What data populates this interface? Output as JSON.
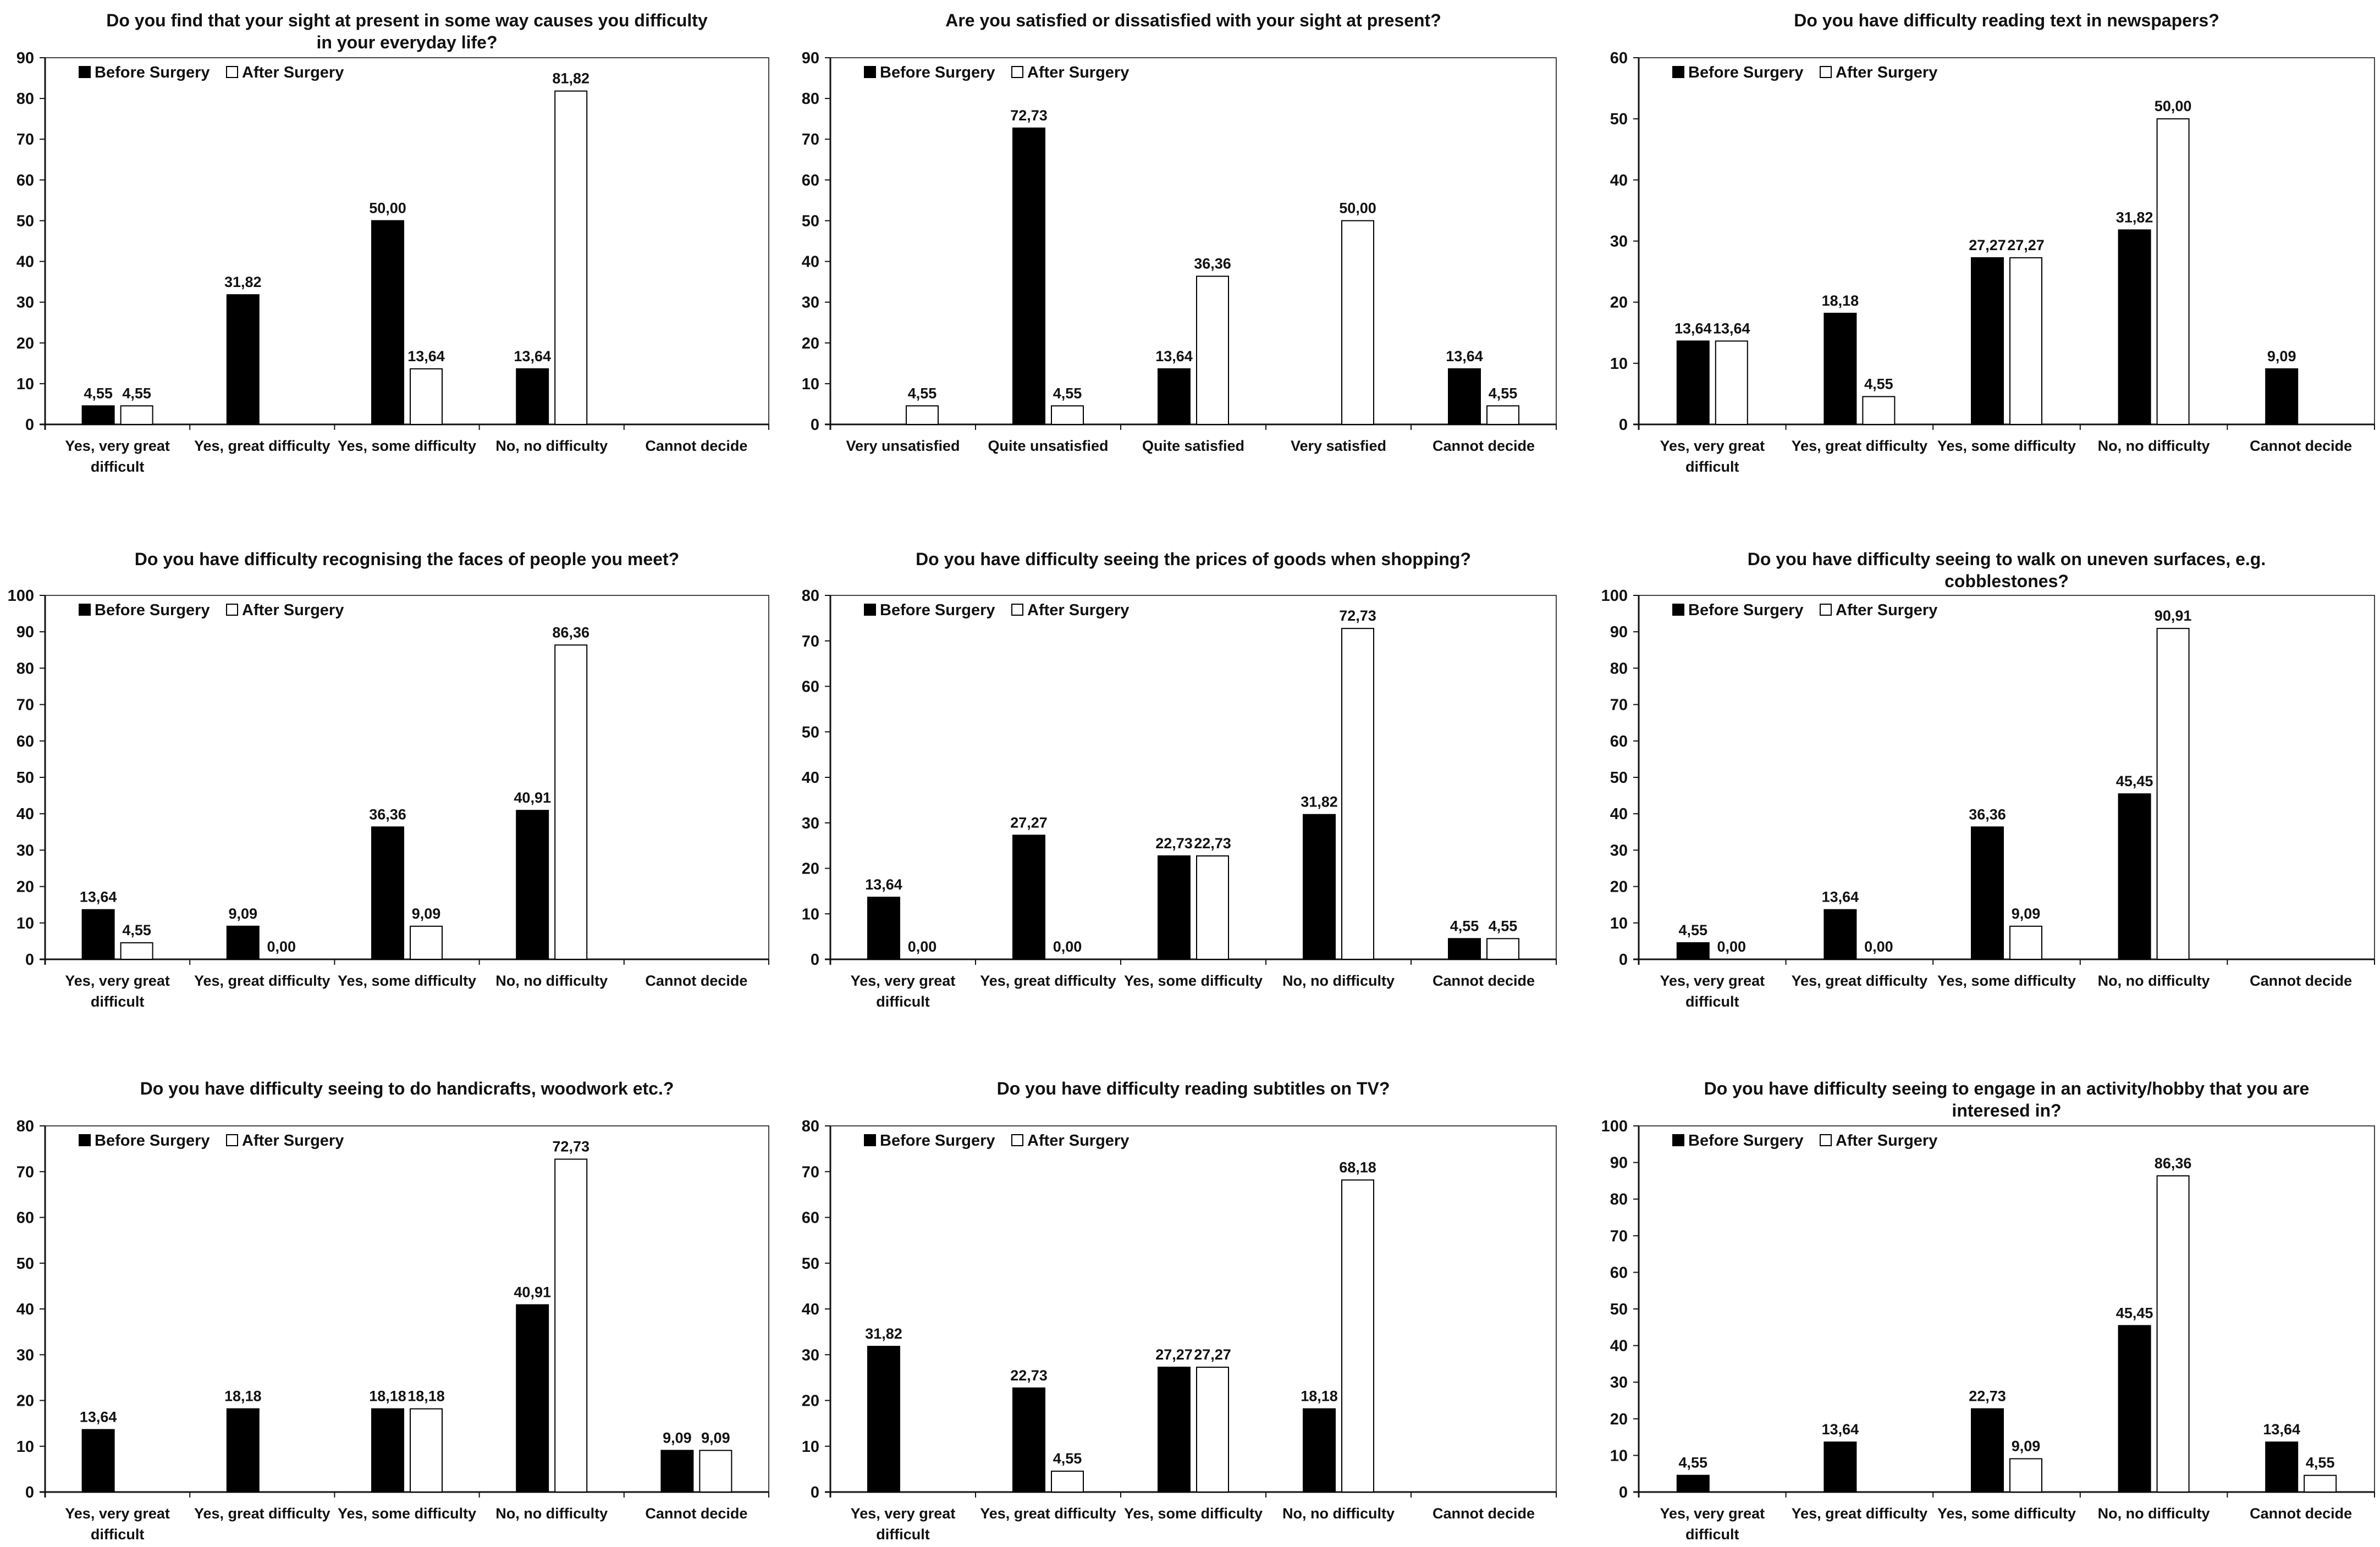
{
  "legend": {
    "before": "Before Surgery",
    "after": "After Surgery"
  },
  "colors": {
    "before": "#000000",
    "after": "#ffffff",
    "axis": "#111111",
    "frame": "#444444"
  },
  "chart_data": [
    {
      "type": "bar",
      "title": [
        "Do you find that your sight at present in some way causes you difficulty",
        "in your everyday life?"
      ],
      "categories": [
        [
          "Yes, very great",
          "difficult"
        ],
        [
          "Yes, great difficulty"
        ],
        [
          "Yes, some difficulty"
        ],
        [
          "No, no difficulty"
        ],
        [
          "Cannot decide"
        ]
      ],
      "series": [
        {
          "name": "Before Surgery",
          "values": [
            4.55,
            31.82,
            50.0,
            13.64,
            null
          ],
          "labels": [
            "4,55",
            "31,82",
            "50,00",
            "13,64",
            null
          ]
        },
        {
          "name": "After Surgery",
          "values": [
            4.55,
            null,
            13.64,
            81.82,
            null
          ],
          "labels": [
            "4,55",
            null,
            "13,64",
            "81,82",
            null
          ]
        }
      ],
      "ylim": [
        0,
        90
      ],
      "yticks": [
        0,
        10,
        20,
        30,
        40,
        50,
        60,
        70,
        80,
        90
      ],
      "legend_position": "top-left"
    },
    {
      "type": "bar",
      "title": [
        "Are you satisfied or dissatisfied with your sight at present?"
      ],
      "categories": [
        [
          "Very unsatisfied"
        ],
        [
          "Quite unsatisfied"
        ],
        [
          "Quite satisfied"
        ],
        [
          "Very satisfied"
        ],
        [
          "Cannot decide"
        ]
      ],
      "series": [
        {
          "name": "Before Surgery",
          "values": [
            null,
            72.73,
            13.64,
            null,
            13.64
          ],
          "labels": [
            null,
            "72,73",
            "13,64",
            null,
            "13,64"
          ]
        },
        {
          "name": "After Surgery",
          "values": [
            4.55,
            4.55,
            36.36,
            50.0,
            4.55
          ],
          "labels": [
            "4,55",
            "4,55",
            "36,36",
            "50,00",
            "4,55"
          ]
        }
      ],
      "ylim": [
        0,
        90
      ],
      "yticks": [
        0,
        10,
        20,
        30,
        40,
        50,
        60,
        70,
        80,
        90
      ],
      "legend_position": "top-left"
    },
    {
      "type": "bar",
      "title": [
        "Do you have difficulty reading text in newspapers?"
      ],
      "categories": [
        [
          "Yes, very great",
          "difficult"
        ],
        [
          "Yes, great difficulty"
        ],
        [
          "Yes, some difficulty"
        ],
        [
          "No, no difficulty"
        ],
        [
          "Cannot decide"
        ]
      ],
      "series": [
        {
          "name": "Before Surgery",
          "values": [
            13.64,
            18.18,
            27.27,
            31.82,
            9.09
          ],
          "labels": [
            "13,64",
            "18,18",
            "27,27",
            "31,82",
            "9,09"
          ]
        },
        {
          "name": "After Surgery",
          "values": [
            13.64,
            4.55,
            27.27,
            50.0,
            null
          ],
          "labels": [
            "13,64",
            "4,55",
            "27,27",
            "50,00",
            null
          ]
        }
      ],
      "ylim": [
        0,
        60
      ],
      "yticks": [
        0,
        10,
        20,
        30,
        40,
        50,
        60
      ],
      "legend_position": "top-left"
    },
    {
      "type": "bar",
      "title": [
        "Do you have difficulty recognising the faces of people you meet?"
      ],
      "categories": [
        [
          "Yes, very great",
          "difficult"
        ],
        [
          "Yes, great difficulty"
        ],
        [
          "Yes, some difficulty"
        ],
        [
          "No, no difficulty"
        ],
        [
          "Cannot decide"
        ]
      ],
      "series": [
        {
          "name": "Before Surgery",
          "values": [
            13.64,
            9.09,
            36.36,
            40.91,
            null
          ],
          "labels": [
            "13,64",
            "9,09",
            "36,36",
            "40,91",
            null
          ]
        },
        {
          "name": "After Surgery",
          "values": [
            4.55,
            0.0,
            9.09,
            86.36,
            null
          ],
          "labels": [
            "4,55",
            "0,00",
            "9,09",
            "86,36",
            null
          ]
        }
      ],
      "ylim": [
        0,
        100
      ],
      "yticks": [
        0,
        10,
        20,
        30,
        40,
        50,
        60,
        70,
        80,
        90,
        100
      ],
      "legend_position": "top-left"
    },
    {
      "type": "bar",
      "title": [
        "Do you have difficulty seeing the prices of goods when shopping?"
      ],
      "categories": [
        [
          "Yes, very great",
          "difficult"
        ],
        [
          "Yes, great difficulty"
        ],
        [
          "Yes, some difficulty"
        ],
        [
          "No, no difficulty"
        ],
        [
          "Cannot decide"
        ]
      ],
      "series": [
        {
          "name": "Before Surgery",
          "values": [
            13.64,
            27.27,
            22.73,
            31.82,
            4.55
          ],
          "labels": [
            "13,64",
            "27,27",
            "22,73",
            "31,82",
            "4,55"
          ]
        },
        {
          "name": "After Surgery",
          "values": [
            0.0,
            0.0,
            22.73,
            72.73,
            4.55
          ],
          "labels": [
            "0,00",
            "0,00",
            "22,73",
            "72,73",
            "4,55"
          ]
        }
      ],
      "ylim": [
        0,
        80
      ],
      "yticks": [
        0,
        10,
        20,
        30,
        40,
        50,
        60,
        70,
        80
      ],
      "legend_position": "top-left"
    },
    {
      "type": "bar",
      "title": [
        "Do you have difficulty seeing to walk on uneven surfaces, e.g.",
        "cobblestones?"
      ],
      "categories": [
        [
          "Yes, very great",
          "difficult"
        ],
        [
          "Yes, great difficulty"
        ],
        [
          "Yes, some difficulty"
        ],
        [
          "No, no difficulty"
        ],
        [
          "Cannot decide"
        ]
      ],
      "series": [
        {
          "name": "Before Surgery",
          "values": [
            4.55,
            13.64,
            36.36,
            45.45,
            null
          ],
          "labels": [
            "4,55",
            "13,64",
            "36,36",
            "45,45",
            null
          ]
        },
        {
          "name": "After Surgery",
          "values": [
            0.0,
            0.0,
            9.09,
            90.91,
            null
          ],
          "labels": [
            "0,00",
            "0,00",
            "9,09",
            "90,91",
            null
          ]
        }
      ],
      "ylim": [
        0,
        100
      ],
      "yticks": [
        0,
        10,
        20,
        30,
        40,
        50,
        60,
        70,
        80,
        90,
        100
      ],
      "legend_position": "top-left"
    },
    {
      "type": "bar",
      "title": [
        "Do you have difficulty seeing to do handicrafts, woodwork etc.?"
      ],
      "categories": [
        [
          "Yes, very great",
          "difficult"
        ],
        [
          "Yes, great difficulty"
        ],
        [
          "Yes, some difficulty"
        ],
        [
          "No, no difficulty"
        ],
        [
          "Cannot decide"
        ]
      ],
      "series": [
        {
          "name": "Before Surgery",
          "values": [
            13.64,
            18.18,
            18.18,
            40.91,
            9.09
          ],
          "labels": [
            "13,64",
            "18,18",
            "18,18",
            "40,91",
            "9,09"
          ]
        },
        {
          "name": "After Surgery",
          "values": [
            null,
            null,
            18.18,
            72.73,
            9.09
          ],
          "labels": [
            null,
            null,
            "18,18",
            "72,73",
            "9,09"
          ]
        }
      ],
      "ylim": [
        0,
        80
      ],
      "yticks": [
        0,
        10,
        20,
        30,
        40,
        50,
        60,
        70,
        80
      ],
      "legend_position": "top-left"
    },
    {
      "type": "bar",
      "title": [
        "Do you have difficulty reading subtitles on TV?"
      ],
      "categories": [
        [
          "Yes, very great",
          "difficult"
        ],
        [
          "Yes, great difficulty"
        ],
        [
          "Yes, some difficulty"
        ],
        [
          "No, no difficulty"
        ],
        [
          "Cannot decide"
        ]
      ],
      "series": [
        {
          "name": "Before Surgery",
          "values": [
            31.82,
            22.73,
            27.27,
            18.18,
            null
          ],
          "labels": [
            "31,82",
            "22,73",
            "27,27",
            "18,18",
            null
          ]
        },
        {
          "name": "After Surgery",
          "values": [
            null,
            4.55,
            27.27,
            68.18,
            null
          ],
          "labels": [
            null,
            "4,55",
            "27,27",
            "68,18",
            null
          ]
        }
      ],
      "ylim": [
        0,
        80
      ],
      "yticks": [
        0,
        10,
        20,
        30,
        40,
        50,
        60,
        70,
        80
      ],
      "legend_position": "top-left"
    },
    {
      "type": "bar",
      "title": [
        "Do you have difficulty seeing to engage in an activity/hobby that you are",
        "interesed in?"
      ],
      "categories": [
        [
          "Yes, very great",
          "difficult"
        ],
        [
          "Yes, great difficulty"
        ],
        [
          "Yes, some difficulty"
        ],
        [
          "No, no difficulty"
        ],
        [
          "Cannot decide"
        ]
      ],
      "series": [
        {
          "name": "Before Surgery",
          "values": [
            4.55,
            13.64,
            22.73,
            45.45,
            13.64
          ],
          "labels": [
            "4,55",
            "13,64",
            "22,73",
            "45,45",
            "13,64"
          ]
        },
        {
          "name": "After Surgery",
          "values": [
            null,
            null,
            9.09,
            86.36,
            4.55
          ],
          "labels": [
            null,
            null,
            "9,09",
            "86,36",
            "4,55"
          ]
        }
      ],
      "ylim": [
        0,
        100
      ],
      "yticks": [
        0,
        10,
        20,
        30,
        40,
        50,
        60,
        70,
        80,
        90,
        100
      ],
      "legend_position": "top-left"
    }
  ]
}
